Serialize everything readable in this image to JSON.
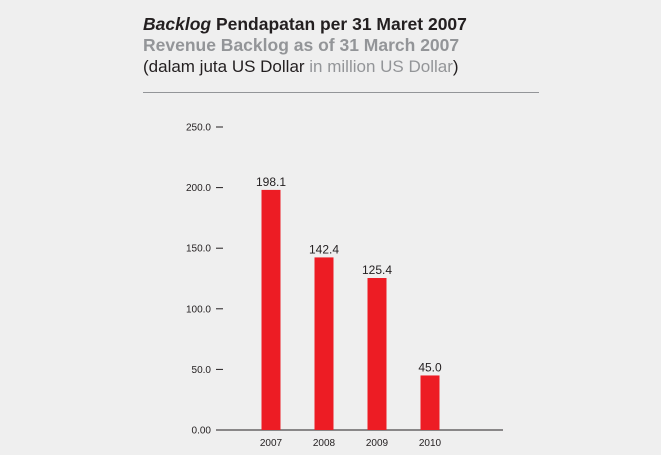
{
  "header": {
    "title_italic": "Backlog",
    "title_rest": " Pendapatan per 31 Maret 2007",
    "subtitle": "Revenue Backlog as of 31 March 2007",
    "unit_id": "(dalam juta US Dollar ",
    "unit_en": "in million US Dollar",
    "unit_close": ")"
  },
  "colors": {
    "bar": "#ed1c24",
    "text": "#231f20",
    "subtitle": "#939598",
    "background": "#efefef"
  },
  "chart_data": {
    "type": "bar",
    "title": "Backlog Pendapatan per 31 Maret 2007 / Revenue Backlog as of 31 March 2007",
    "ylabel": "(dalam juta US Dollar in million US Dollar)",
    "xlabel": "",
    "categories": [
      "2007",
      "2008",
      "2009",
      "2010"
    ],
    "values": [
      198.1,
      142.4,
      125.4,
      45.0
    ],
    "value_labels": [
      "198.1",
      "142.4",
      "125.4",
      "45.0"
    ],
    "ylim": [
      0,
      250
    ],
    "yticks": [
      0,
      50,
      100,
      150,
      200,
      250
    ],
    "ytick_labels": [
      "0.00",
      "50.0",
      "100.0",
      "150.0",
      "200.0",
      "250.0"
    ],
    "grid": false,
    "legend": "none"
  }
}
